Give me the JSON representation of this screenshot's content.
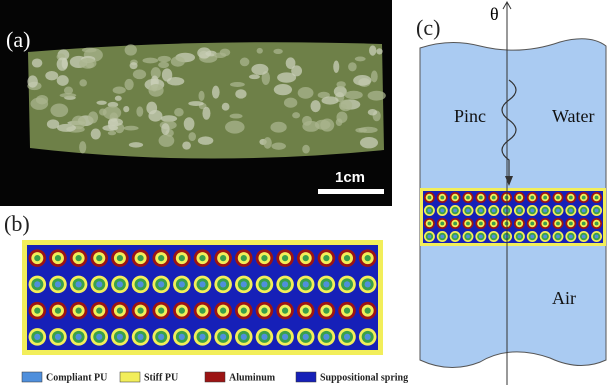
{
  "panel_a": {
    "label": "(a)",
    "scale_bar": "1cm"
  },
  "panel_b": {
    "label": "(b)",
    "legend": [
      {
        "label": "Compliant PU",
        "color": "#4f8fdc"
      },
      {
        "label": "Stiff PU",
        "color": "#f2ee5a"
      },
      {
        "label": "Aluminum",
        "color": "#9c1414"
      },
      {
        "label": "Suppositional spring",
        "color": "#1620b8"
      }
    ]
  },
  "panel_c": {
    "label": "(c)",
    "angle": "θ",
    "incident": "Pinc",
    "upper_medium": "Water",
    "lower_medium": "Air"
  }
}
